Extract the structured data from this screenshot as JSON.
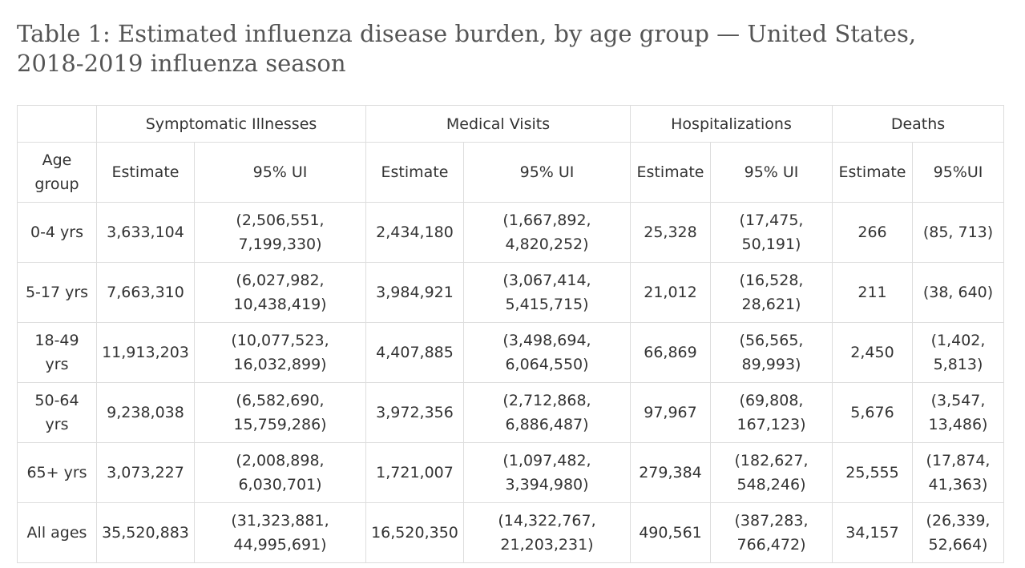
{
  "title": "Table 1: Estimated influenza disease burden, by age group — United States, 2018-2019 influenza season",
  "groups": [
    "Symptomatic Illnesses",
    "Medical Visits",
    "Hospitalizations",
    "Deaths"
  ],
  "subheaders": [
    "Age group",
    "Estimate",
    "95% UI",
    "Estimate",
    "95% UI",
    "Estimate",
    "95% UI",
    "Estimate",
    "95%UI"
  ],
  "rows": [
    [
      "0-4 yrs",
      "3,633,104",
      "(2,506,551, 7,199,330)",
      "2,434,180",
      "(1,667,892, 4,820,252)",
      "25,328",
      "(17,475, 50,191)",
      "266",
      "(85, 713)"
    ],
    [
      "5-17 yrs",
      "7,663,310",
      "(6,027,982, 10,438,419)",
      "3,984,921",
      "(3,067,414, 5,415,715)",
      "21,012",
      "(16,528, 28,621)",
      "211",
      "(38, 640)"
    ],
    [
      "18-49 yrs",
      "11,913,203",
      "(10,077,523, 16,032,899)",
      "4,407,885",
      "(3,498,694, 6,064,550)",
      "66,869",
      "(56,565, 89,993)",
      "2,450",
      "(1,402, 5,813)"
    ],
    [
      "50-64 yrs",
      "9,238,038",
      "(6,582,690, 15,759,286)",
      "3,972,356",
      "(2,712,868, 6,886,487)",
      "97,967",
      "(69,808, 167,123)",
      "5,676",
      "(3,547, 13,486)"
    ],
    [
      "65+ yrs",
      "3,073,227",
      "(2,008,898, 6,030,701)",
      "1,721,007",
      "(1,097,482, 3,394,980)",
      "279,384",
      "(182,627, 548,246)",
      "25,555",
      "(17,874, 41,363)"
    ],
    [
      "All ages",
      "35,520,883",
      "(31,323,881, 44,995,691)",
      "16,520,350",
      "(14,322,767, 21,203,231)",
      "490,561",
      "(387,283, 766,472)",
      "34,157",
      "(26,339, 52,664)"
    ]
  ]
}
